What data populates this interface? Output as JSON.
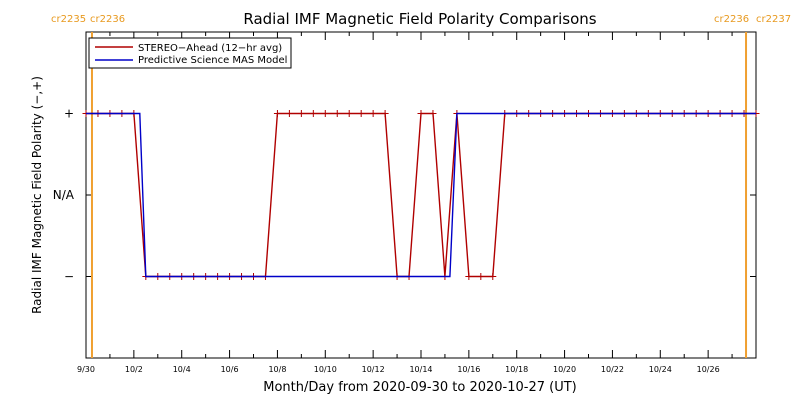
{
  "chart_data": {
    "type": "line",
    "title": "Radial IMF Magnetic Field Polarity Comparisons",
    "xlabel": "Month/Day from 2020-09-30 to 2020-10-27 (UT)",
    "ylabel": "Radial IMF Magnetic Field Polarity (−,+)",
    "x_range": [
      "2020-09-30",
      "2020-10-28"
    ],
    "x_ticks": [
      "9/30",
      "10/2",
      "10/4",
      "10/6",
      "10/8",
      "10/10",
      "10/12",
      "10/14",
      "10/16",
      "10/18",
      "10/20",
      "10/22",
      "10/24",
      "10/26"
    ],
    "y_categories": [
      "−",
      "N/A",
      "+"
    ],
    "y_range": [
      -2,
      2
    ],
    "y_tick_values": [
      -1,
      0,
      1
    ],
    "carrington_markers": [
      {
        "date": "2020-09-30T06:00",
        "left_label": "cr2235",
        "right_label": "cr2236"
      },
      {
        "date": "2020-10-27T14:00",
        "left_label": "cr2236",
        "right_label": "cr2237"
      }
    ],
    "legend": {
      "placement": "top-left"
    },
    "series": [
      {
        "name": "STEREO−Ahead (12−hr avg)",
        "color": "#b00000",
        "marker": "plus",
        "points": [
          [
            "2020-09-30T00:00",
            1
          ],
          [
            "2020-09-30T12:00",
            1
          ],
          [
            "2020-10-01T00:00",
            1
          ],
          [
            "2020-10-01T12:00",
            1
          ],
          [
            "2020-10-02T00:00",
            1
          ],
          [
            "2020-10-02T12:00",
            -1
          ],
          [
            "2020-10-03T00:00",
            -1
          ],
          [
            "2020-10-03T12:00",
            -1
          ],
          [
            "2020-10-04T00:00",
            -1
          ],
          [
            "2020-10-04T12:00",
            -1
          ],
          [
            "2020-10-05T00:00",
            -1
          ],
          [
            "2020-10-05T12:00",
            -1
          ],
          [
            "2020-10-06T00:00",
            -1
          ],
          [
            "2020-10-06T12:00",
            -1
          ],
          [
            "2020-10-07T00:00",
            -1
          ],
          [
            "2020-10-07T12:00",
            -1
          ],
          [
            "2020-10-08T00:00",
            1
          ],
          [
            "2020-10-08T12:00",
            1
          ],
          [
            "2020-10-09T00:00",
            1
          ],
          [
            "2020-10-09T12:00",
            1
          ],
          [
            "2020-10-10T00:00",
            1
          ],
          [
            "2020-10-10T12:00",
            1
          ],
          [
            "2020-10-11T00:00",
            1
          ],
          [
            "2020-10-11T12:00",
            1
          ],
          [
            "2020-10-12T00:00",
            1
          ],
          [
            "2020-10-12T12:00",
            1
          ],
          [
            "2020-10-13T00:00",
            -1
          ],
          [
            "2020-10-13T12:00",
            -1
          ],
          [
            "2020-10-14T00:00",
            1
          ],
          [
            "2020-10-14T12:00",
            1
          ],
          [
            "2020-10-15T00:00",
            -1
          ],
          [
            "2020-10-15T12:00",
            1
          ],
          [
            "2020-10-16T00:00",
            -1
          ],
          [
            "2020-10-16T12:00",
            -1
          ],
          [
            "2020-10-17T00:00",
            -1
          ],
          [
            "2020-10-17T12:00",
            1
          ],
          [
            "2020-10-18T00:00",
            1
          ],
          [
            "2020-10-18T12:00",
            1
          ],
          [
            "2020-10-19T00:00",
            1
          ],
          [
            "2020-10-19T12:00",
            1
          ],
          [
            "2020-10-20T00:00",
            1
          ],
          [
            "2020-10-20T12:00",
            1
          ],
          [
            "2020-10-21T00:00",
            1
          ],
          [
            "2020-10-21T12:00",
            1
          ],
          [
            "2020-10-22T00:00",
            1
          ],
          [
            "2020-10-22T12:00",
            1
          ],
          [
            "2020-10-23T00:00",
            1
          ],
          [
            "2020-10-23T12:00",
            1
          ],
          [
            "2020-10-24T00:00",
            1
          ],
          [
            "2020-10-24T12:00",
            1
          ],
          [
            "2020-10-25T00:00",
            1
          ],
          [
            "2020-10-25T12:00",
            1
          ],
          [
            "2020-10-26T00:00",
            1
          ],
          [
            "2020-10-26T12:00",
            1
          ],
          [
            "2020-10-27T00:00",
            1
          ],
          [
            "2020-10-27T12:00",
            1
          ],
          [
            "2020-10-28T00:00",
            1
          ]
        ]
      },
      {
        "name": "Predictive Science MAS Model",
        "color": "#0000c8",
        "marker": "none",
        "points": [
          [
            "2020-09-30T00:00",
            1
          ],
          [
            "2020-10-02T06:00",
            1
          ],
          [
            "2020-10-02T12:00",
            -1
          ],
          [
            "2020-10-15T05:00",
            -1
          ],
          [
            "2020-10-15T12:00",
            1
          ],
          [
            "2020-10-28T00:00",
            1
          ]
        ]
      }
    ]
  }
}
